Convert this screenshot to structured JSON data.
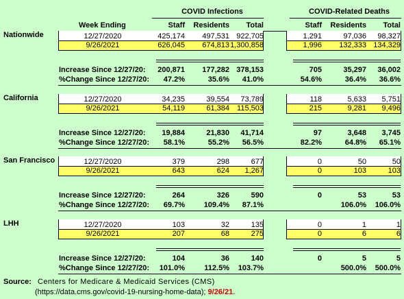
{
  "header": {
    "col_week": "Week Ending",
    "group_infections": "COVID Infections",
    "group_deaths": "COVID-Related Deaths",
    "staff": "Staff",
    "residents": "Residents",
    "total": "Total"
  },
  "label_increase": "Increase Since 12/27/20:",
  "label_pct": "%Change Since 12/27/20:",
  "sections": [
    {
      "name": "Nationwide",
      "base": {
        "date": "12/27/2020",
        "inf": [
          "425,174",
          "497,531",
          "922,705"
        ],
        "dth": [
          "1,291",
          "97,036",
          "98,327"
        ]
      },
      "current": {
        "date": "9/26/2021",
        "inf": [
          "626,045",
          "674,813",
          "1,300,858"
        ],
        "dth": [
          "1,996",
          "132,333",
          "134,329"
        ]
      },
      "increase": {
        "inf": [
          "200,871",
          "177,282",
          "378,153"
        ],
        "dth": [
          "705",
          "35,297",
          "36,002"
        ]
      },
      "pct": {
        "inf": [
          "47.2%",
          "35.6%",
          "41.0%"
        ],
        "dth": [
          "54.6%",
          "36.4%",
          "36.6%"
        ]
      }
    },
    {
      "name": "California",
      "base": {
        "date": "12/27/2020",
        "inf": [
          "34,235",
          "39,554",
          "73,789"
        ],
        "dth": [
          "118",
          "5,633",
          "5,751"
        ]
      },
      "current": {
        "date": "9/26/2021",
        "inf": [
          "54,119",
          "61,384",
          "115,503"
        ],
        "dth": [
          "215",
          "9,281",
          "9,496"
        ]
      },
      "increase": {
        "inf": [
          "19,884",
          "21,830",
          "41,714"
        ],
        "dth": [
          "97",
          "3,648",
          "3,745"
        ]
      },
      "pct": {
        "inf": [
          "58.1%",
          "55.2%",
          "56.5%"
        ],
        "dth": [
          "82.2%",
          "64.8%",
          "65.1%"
        ]
      }
    },
    {
      "name": "San Francisco",
      "base": {
        "date": "12/27/2020",
        "inf": [
          "379",
          "298",
          "677"
        ],
        "dth": [
          "0",
          "50",
          "50"
        ]
      },
      "current": {
        "date": "9/26/2021",
        "inf": [
          "643",
          "624",
          "1,267"
        ],
        "dth": [
          "0",
          "103",
          "103"
        ]
      },
      "increase": {
        "inf": [
          "264",
          "326",
          "590"
        ],
        "dth": [
          "0",
          "53",
          "53"
        ]
      },
      "pct": {
        "inf": [
          "69.7%",
          "109.4%",
          "87.1%"
        ],
        "dth": [
          "",
          "106.0%",
          "106.0%"
        ]
      }
    },
    {
      "name": "LHH",
      "base": {
        "date": "12/27/2020",
        "inf": [
          "103",
          "32",
          "135"
        ],
        "dth": [
          "0",
          "1",
          "1"
        ]
      },
      "current": {
        "date": "9/26/2021",
        "inf": [
          "207",
          "68",
          "275"
        ],
        "dth": [
          "0",
          "6",
          "6"
        ]
      },
      "increase": {
        "inf": [
          "104",
          "36",
          "140"
        ],
        "dth": [
          "0",
          "5",
          "5"
        ]
      },
      "pct": {
        "inf": [
          "101.0%",
          "112.5%",
          "103.7%"
        ],
        "dth": [
          "",
          "500.0%",
          "500.0%"
        ]
      }
    }
  ],
  "source": {
    "label": "Source:",
    "line1": "Centers for Medicare & Medicaid Services (CMS)",
    "line2": "(https://data.cms.gov/covid-19-nursing-home-data);",
    "date": "9/26/21",
    "period": "."
  },
  "colors": {
    "background": "#ccffcc",
    "highlight": "#ffff66",
    "date_red": "#cc0000"
  }
}
